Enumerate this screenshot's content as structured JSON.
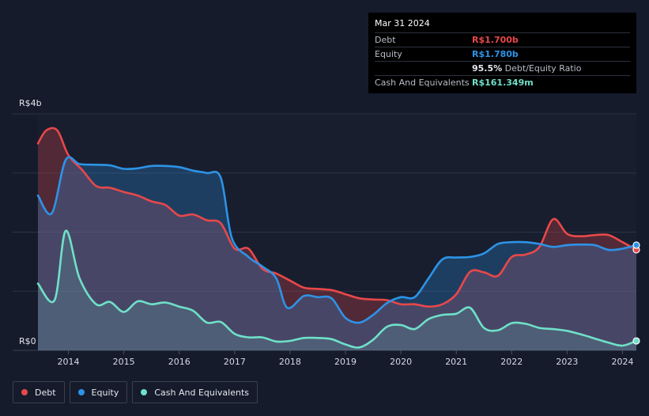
{
  "tooltip": {
    "date": "Mar 31 2024",
    "debt_label": "Debt",
    "debt_value": "R$1.700b",
    "equity_label": "Equity",
    "equity_value": "R$1.780b",
    "ratio_value": "95.5%",
    "ratio_label": "Debt/Equity Ratio",
    "cash_label": "Cash And Equivalents",
    "cash_value": "R$161.349m"
  },
  "legend": [
    {
      "label": "Debt",
      "color": "#e8484a"
    },
    {
      "label": "Equity",
      "color": "#2d93e6"
    },
    {
      "label": "Cash And Equivalents",
      "color": "#6fe0c9"
    }
  ],
  "chart_data": {
    "type": "area",
    "title": "",
    "ylabel": "",
    "xlabel": "",
    "y_unit": "R$ billions",
    "ylim": [
      0,
      4
    ],
    "y_tick_labels": [
      {
        "value": 4,
        "label": "R$4b"
      },
      {
        "value": 0,
        "label": "R$0"
      }
    ],
    "x_ticks": [
      {
        "value": 2014,
        "label": "2014"
      },
      {
        "value": 2015,
        "label": "2015"
      },
      {
        "value": 2016,
        "label": "2016"
      },
      {
        "value": 2017,
        "label": "2017"
      },
      {
        "value": 2018,
        "label": "2018"
      },
      {
        "value": 2019,
        "label": "2019"
      },
      {
        "value": 2020,
        "label": "2020"
      },
      {
        "value": 2021,
        "label": "2021"
      },
      {
        "value": 2022,
        "label": "2022"
      },
      {
        "value": 2023,
        "label": "2023"
      },
      {
        "value": 2024,
        "label": "2024"
      }
    ],
    "xlim": [
      2013.45,
      2024.25
    ],
    "series": [
      {
        "name": "Debt",
        "color": "#e8484a",
        "points": [
          [
            2013.45,
            3.5
          ],
          [
            2013.6,
            3.72
          ],
          [
            2013.8,
            3.72
          ],
          [
            2014.0,
            3.3
          ],
          [
            2014.25,
            3.05
          ],
          [
            2014.5,
            2.78
          ],
          [
            2014.75,
            2.75
          ],
          [
            2015.0,
            2.68
          ],
          [
            2015.25,
            2.62
          ],
          [
            2015.5,
            2.52
          ],
          [
            2015.75,
            2.46
          ],
          [
            2016.0,
            2.28
          ],
          [
            2016.25,
            2.3
          ],
          [
            2016.5,
            2.2
          ],
          [
            2016.75,
            2.15
          ],
          [
            2017.0,
            1.72
          ],
          [
            2017.25,
            1.72
          ],
          [
            2017.5,
            1.38
          ],
          [
            2017.75,
            1.3
          ],
          [
            2018.0,
            1.18
          ],
          [
            2018.25,
            1.06
          ],
          [
            2018.5,
            1.04
          ],
          [
            2018.75,
            1.02
          ],
          [
            2019.0,
            0.95
          ],
          [
            2019.25,
            0.88
          ],
          [
            2019.5,
            0.86
          ],
          [
            2019.75,
            0.85
          ],
          [
            2020.0,
            0.78
          ],
          [
            2020.25,
            0.78
          ],
          [
            2020.5,
            0.74
          ],
          [
            2020.75,
            0.78
          ],
          [
            2021.0,
            0.95
          ],
          [
            2021.25,
            1.33
          ],
          [
            2021.5,
            1.32
          ],
          [
            2021.75,
            1.26
          ],
          [
            2022.0,
            1.58
          ],
          [
            2022.25,
            1.62
          ],
          [
            2022.5,
            1.75
          ],
          [
            2022.75,
            2.22
          ],
          [
            2023.0,
            1.97
          ],
          [
            2023.25,
            1.93
          ],
          [
            2023.5,
            1.95
          ],
          [
            2023.75,
            1.95
          ],
          [
            2024.0,
            1.83
          ],
          [
            2024.25,
            1.7
          ]
        ]
      },
      {
        "name": "Equity",
        "color": "#2d93e6",
        "points": [
          [
            2013.45,
            2.62
          ],
          [
            2013.7,
            2.32
          ],
          [
            2013.95,
            3.22
          ],
          [
            2014.2,
            3.15
          ],
          [
            2014.5,
            3.14
          ],
          [
            2014.75,
            3.13
          ],
          [
            2015.0,
            3.07
          ],
          [
            2015.25,
            3.08
          ],
          [
            2015.5,
            3.12
          ],
          [
            2015.75,
            3.12
          ],
          [
            2016.0,
            3.1
          ],
          [
            2016.25,
            3.04
          ],
          [
            2016.5,
            3.0
          ],
          [
            2016.75,
            2.92
          ],
          [
            2016.95,
            1.9
          ],
          [
            2017.25,
            1.58
          ],
          [
            2017.5,
            1.42
          ],
          [
            2017.75,
            1.22
          ],
          [
            2017.95,
            0.72
          ],
          [
            2018.25,
            0.92
          ],
          [
            2018.5,
            0.9
          ],
          [
            2018.75,
            0.88
          ],
          [
            2019.0,
            0.55
          ],
          [
            2019.25,
            0.47
          ],
          [
            2019.5,
            0.6
          ],
          [
            2019.75,
            0.8
          ],
          [
            2020.0,
            0.9
          ],
          [
            2020.25,
            0.9
          ],
          [
            2020.5,
            1.22
          ],
          [
            2020.75,
            1.54
          ],
          [
            2021.0,
            1.57
          ],
          [
            2021.25,
            1.58
          ],
          [
            2021.5,
            1.64
          ],
          [
            2021.75,
            1.8
          ],
          [
            2022.0,
            1.83
          ],
          [
            2022.25,
            1.83
          ],
          [
            2022.5,
            1.8
          ],
          [
            2022.75,
            1.75
          ],
          [
            2023.0,
            1.78
          ],
          [
            2023.25,
            1.79
          ],
          [
            2023.5,
            1.78
          ],
          [
            2023.75,
            1.7
          ],
          [
            2024.0,
            1.72
          ],
          [
            2024.25,
            1.78
          ]
        ]
      },
      {
        "name": "Cash And Equivalents",
        "color": "#6fe0c9",
        "points": [
          [
            2013.45,
            1.13
          ],
          [
            2013.75,
            0.85
          ],
          [
            2013.95,
            2.02
          ],
          [
            2014.2,
            1.22
          ],
          [
            2014.5,
            0.78
          ],
          [
            2014.75,
            0.82
          ],
          [
            2015.0,
            0.65
          ],
          [
            2015.25,
            0.83
          ],
          [
            2015.5,
            0.78
          ],
          [
            2015.75,
            0.81
          ],
          [
            2016.0,
            0.74
          ],
          [
            2016.25,
            0.67
          ],
          [
            2016.5,
            0.47
          ],
          [
            2016.75,
            0.48
          ],
          [
            2017.0,
            0.28
          ],
          [
            2017.25,
            0.22
          ],
          [
            2017.5,
            0.22
          ],
          [
            2017.75,
            0.15
          ],
          [
            2018.0,
            0.16
          ],
          [
            2018.25,
            0.21
          ],
          [
            2018.5,
            0.21
          ],
          [
            2018.75,
            0.19
          ],
          [
            2019.0,
            0.1
          ],
          [
            2019.25,
            0.05
          ],
          [
            2019.5,
            0.18
          ],
          [
            2019.75,
            0.4
          ],
          [
            2020.0,
            0.43
          ],
          [
            2020.25,
            0.36
          ],
          [
            2020.5,
            0.53
          ],
          [
            2020.75,
            0.6
          ],
          [
            2021.0,
            0.62
          ],
          [
            2021.25,
            0.72
          ],
          [
            2021.5,
            0.38
          ],
          [
            2021.75,
            0.34
          ],
          [
            2022.0,
            0.46
          ],
          [
            2022.25,
            0.45
          ],
          [
            2022.5,
            0.38
          ],
          [
            2022.75,
            0.36
          ],
          [
            2023.0,
            0.33
          ],
          [
            2023.25,
            0.27
          ],
          [
            2023.5,
            0.2
          ],
          [
            2023.75,
            0.13
          ],
          [
            2024.0,
            0.08
          ],
          [
            2024.25,
            0.16
          ]
        ]
      }
    ]
  }
}
